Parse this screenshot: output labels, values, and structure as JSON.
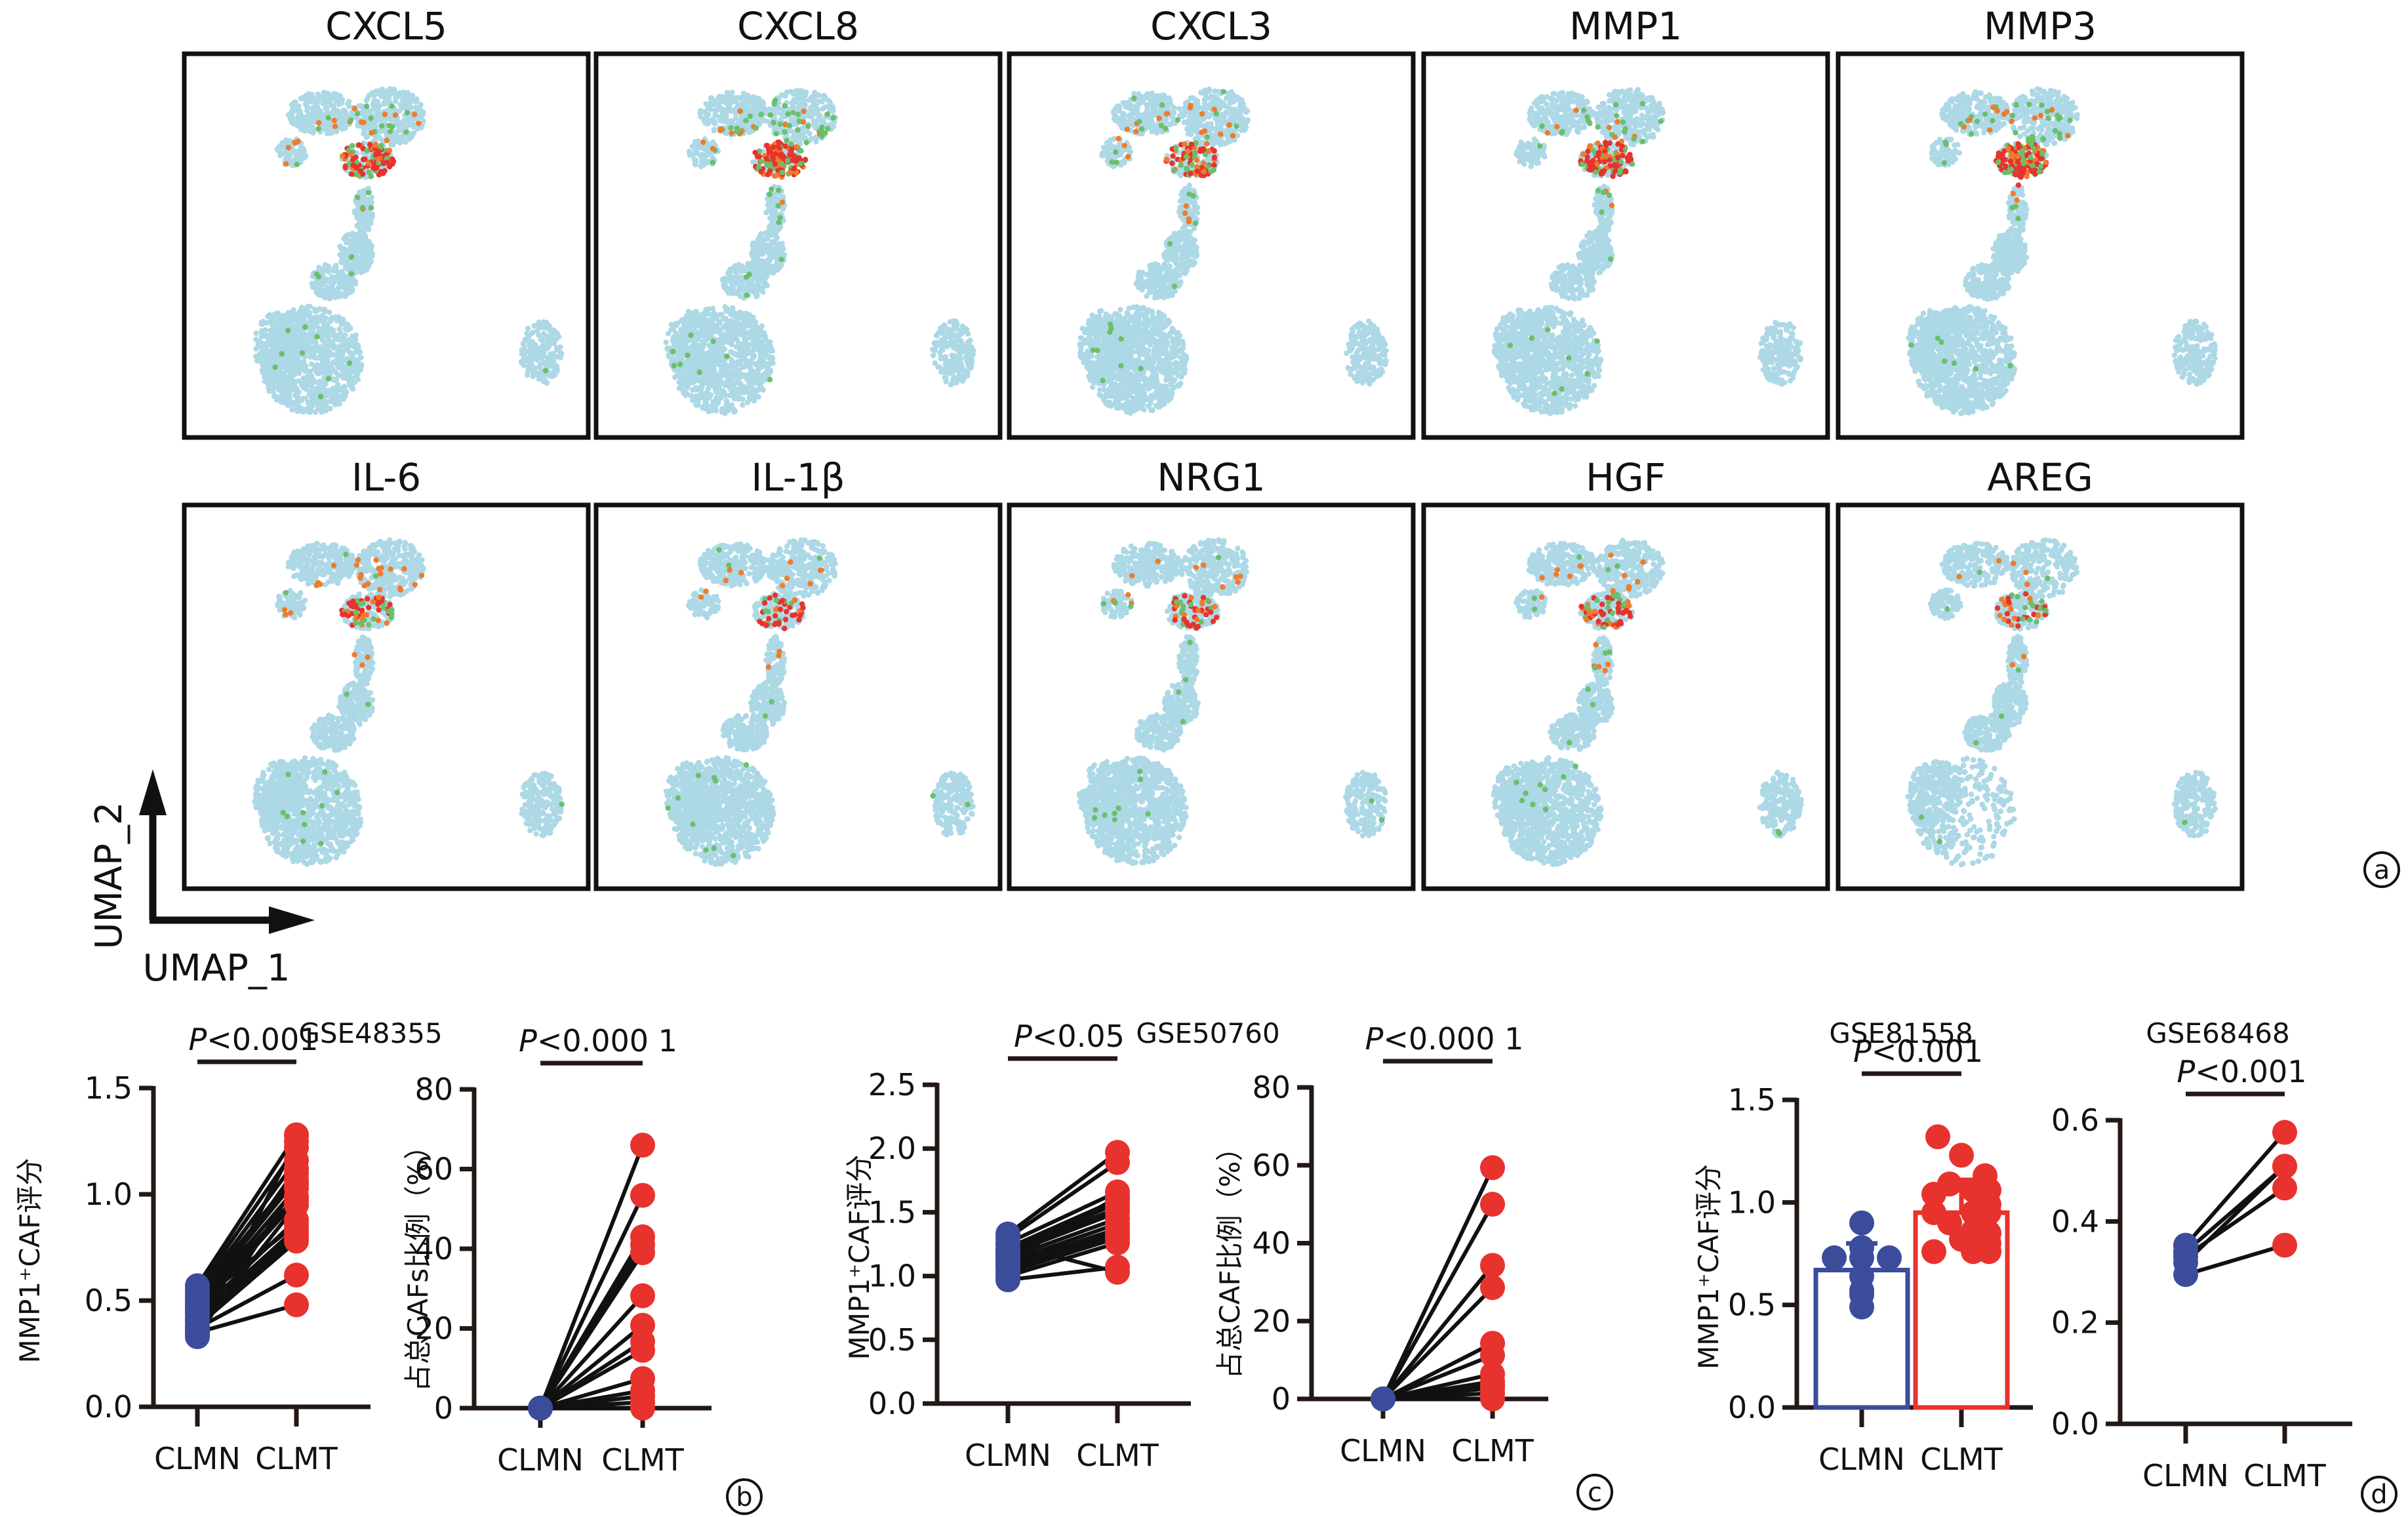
{
  "colors": {
    "background_cell": "#ADD8E6",
    "low_expr": "#6CBF6A",
    "mid_expr": "#F07B2A",
    "high_expr": "#E8322E",
    "clmn": "#3B4C9B",
    "clmt": "#E8322E",
    "axis": "#231815"
  },
  "panel_a": {
    "label": "a",
    "axis_x_label": "UMAP_1",
    "axis_y_label": "UMAP_2",
    "genes_row1": [
      "CXCL5",
      "CXCL8",
      "CXCL3",
      "MMP1",
      "MMP3"
    ],
    "genes_row2": [
      "IL-6",
      "IL-1β",
      "NRG1",
      "HGF",
      "AREG"
    ]
  },
  "chart_data": [
    {
      "id": "b1",
      "panel": "b",
      "type": "scatter",
      "subtitle": "GSE48355",
      "title": "P<0.001",
      "ylabel": "MMP1⁺CAF评分",
      "categories": [
        "CLMN",
        "CLMT"
      ],
      "ylim": [
        0,
        1.5
      ],
      "yticks": [
        "0.0",
        "0.5",
        "1.0",
        "1.5"
      ],
      "yticks_values": [
        0,
        0.5,
        1.0,
        1.5
      ],
      "paired": true,
      "series": [
        {
          "name": "CLMN",
          "values": [
            0.57,
            0.55,
            0.53,
            0.52,
            0.5,
            0.48,
            0.47,
            0.45,
            0.44,
            0.42,
            0.4,
            0.38,
            0.37,
            0.35,
            0.34,
            0.33,
            0.36,
            0.41,
            0.46,
            0.49
          ]
        },
        {
          "name": "CLMT",
          "values": [
            1.28,
            1.22,
            1.16,
            1.1,
            1.07,
            1.03,
            0.99,
            0.97,
            0.88,
            0.84,
            0.8,
            0.78,
            0.62,
            0.48,
            1.25,
            1.05,
            0.95,
            0.82,
            1.12,
            0.86
          ]
        }
      ]
    },
    {
      "id": "b2",
      "panel": "b",
      "type": "scatter",
      "title": "P<0.000 1",
      "ylabel": "占总CAFs比例（%）",
      "categories": [
        "CLMN",
        "CLMT"
      ],
      "ylim": [
        0,
        80
      ],
      "yticks": [
        "0",
        "20",
        "40",
        "60",
        "80"
      ],
      "yticks_values": [
        0,
        20,
        40,
        60,
        80
      ],
      "paired": true,
      "series": [
        {
          "name": "CLMN",
          "values": [
            0,
            0,
            0,
            0,
            0,
            0,
            0,
            0,
            0,
            0,
            0,
            0,
            0,
            0
          ]
        },
        {
          "name": "CLMT",
          "values": [
            66,
            53.4,
            43,
            41,
            39,
            28.2,
            20.8,
            16.7,
            14.5,
            7.4,
            4.4,
            3,
            1.5,
            0
          ]
        }
      ]
    },
    {
      "id": "c1",
      "panel": "c",
      "type": "scatter",
      "subtitle": "GSE50760",
      "title": "P<0.05",
      "ylabel": "MMP1⁺CAF评分",
      "categories": [
        "CLMN",
        "CLMT"
      ],
      "ylim": [
        0,
        2.5
      ],
      "yticks": [
        "0.0",
        "0.5",
        "1.0",
        "1.5",
        "2.0",
        "2.5"
      ],
      "yticks_values": [
        0,
        0.5,
        1.0,
        1.5,
        2.0,
        2.5
      ],
      "paired": true,
      "series": [
        {
          "name": "CLMN",
          "values": [
            1.33,
            1.3,
            1.26,
            1.22,
            1.2,
            1.17,
            1.14,
            1.11,
            1.09,
            1.06,
            1.03,
            1.0,
            0.97,
            1.25,
            1.12,
            1.19,
            1.08
          ]
        },
        {
          "name": "CLMT",
          "values": [
            1.97,
            1.89,
            1.66,
            1.6,
            1.57,
            1.5,
            1.45,
            1.41,
            1.37,
            1.33,
            1.3,
            1.26,
            1.07,
            1.03,
            1.62,
            1.53,
            1.34
          ]
        }
      ]
    },
    {
      "id": "c2",
      "panel": "c",
      "type": "scatter",
      "title": "P<0.000 1",
      "ylabel": "占总CAF比例（%）",
      "categories": [
        "CLMN",
        "CLMT"
      ],
      "ylim": [
        0,
        80
      ],
      "yticks": [
        "0",
        "20",
        "40",
        "60",
        "80"
      ],
      "yticks_values": [
        0,
        20,
        40,
        60,
        80
      ],
      "paired": true,
      "series": [
        {
          "name": "CLMN",
          "values": [
            0,
            0,
            0,
            0,
            0,
            0,
            0,
            0,
            0,
            0,
            0,
            0
          ]
        },
        {
          "name": "CLMT",
          "values": [
            59.4,
            50,
            34.3,
            28.6,
            14.3,
            11.2,
            6.4,
            4.5,
            3.5,
            2.8,
            1.5,
            0
          ]
        }
      ]
    },
    {
      "id": "d1",
      "panel": "d",
      "type": "bar",
      "subtitle": "GSE81558",
      "title": "P<0.001",
      "ylabel": "MMP1⁺CAF评分",
      "categories": [
        "CLMN",
        "CLMT"
      ],
      "ylim": [
        0,
        1.5
      ],
      "yticks": [
        "0.0",
        "0.5",
        "1.0",
        "1.5"
      ],
      "yticks_values": [
        0,
        0.5,
        1.0,
        1.5
      ],
      "bars": [
        {
          "name": "CLMN",
          "mean": 0.67,
          "error_upper": 0.8,
          "points": [
            0.9,
            0.78,
            0.73,
            0.73,
            0.73,
            0.64,
            0.57,
            0.55,
            0.49
          ]
        },
        {
          "name": "CLMT",
          "mean": 0.95,
          "error_upper": 1.11,
          "points": [
            1.32,
            1.23,
            1.13,
            1.09,
            1.06,
            1.06,
            1.04,
            1.01,
            0.99,
            0.95,
            0.95,
            0.95,
            0.92,
            0.9,
            0.86,
            0.85,
            0.82,
            0.8,
            0.8,
            0.76,
            0.76,
            0.76,
            0.88
          ]
        }
      ]
    },
    {
      "id": "d2",
      "panel": "d",
      "type": "scatter",
      "subtitle": "GSE68468",
      "title": "P<0.001",
      "categories": [
        "CLMN",
        "CLMT"
      ],
      "ylim": [
        0,
        0.6
      ],
      "yticks": [
        "0.0",
        "0.2",
        "0.4",
        "0.6"
      ],
      "yticks_values": [
        0,
        0.2,
        0.4,
        0.6
      ],
      "paired": true,
      "series": [
        {
          "name": "CLMN",
          "values": [
            0.353,
            0.34,
            0.331,
            0.319,
            0.295
          ]
        },
        {
          "name": "CLMT",
          "values": [
            0.576,
            0.509,
            0.466,
            0.509,
            0.353
          ]
        }
      ]
    }
  ],
  "panel_labels": {
    "b": "b",
    "c": "c",
    "d": "d"
  }
}
